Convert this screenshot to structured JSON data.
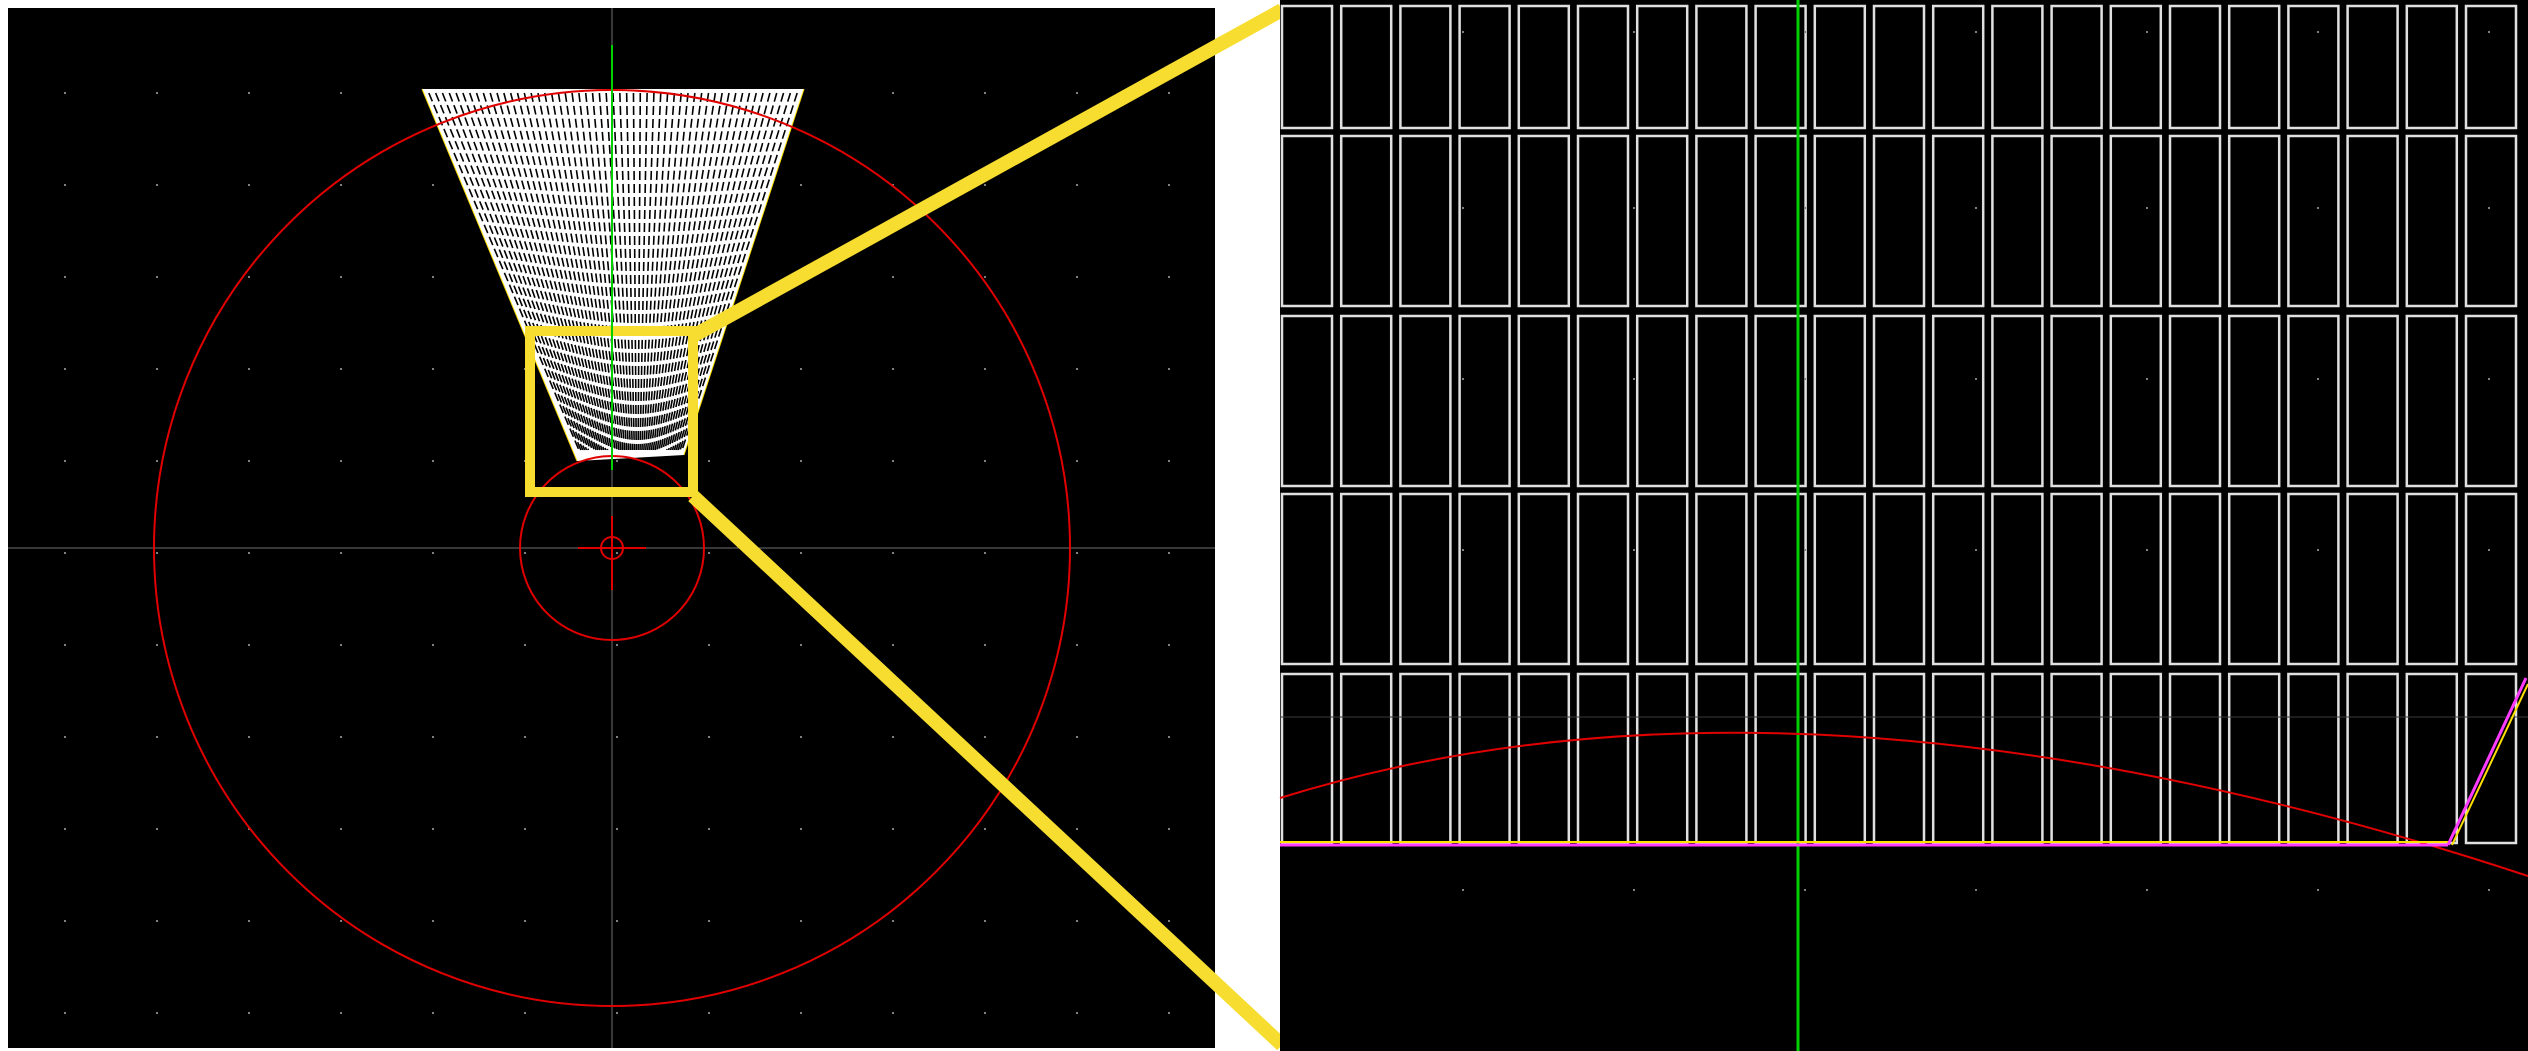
{
  "colors": {
    "canvas_background": "#000000",
    "page_background": "#ffffff",
    "boundary_circle": "#e00000",
    "axis_vertical": "#00d000",
    "axis_horizontal": "#707070",
    "grid_dot": "#808080",
    "wedge_fill": "#ffffff",
    "wedge_lines": "#000000",
    "cell_outline": "#e0e0e0",
    "zoom_box": "#f7dd2f",
    "edge_line_magenta": "#ff3cff",
    "edge_line_yellow": "#ffe000"
  },
  "views": {
    "overview": {
      "icon": "layout-overview-canvas"
    },
    "zoom": {
      "icon": "layout-zoom-canvas"
    }
  }
}
